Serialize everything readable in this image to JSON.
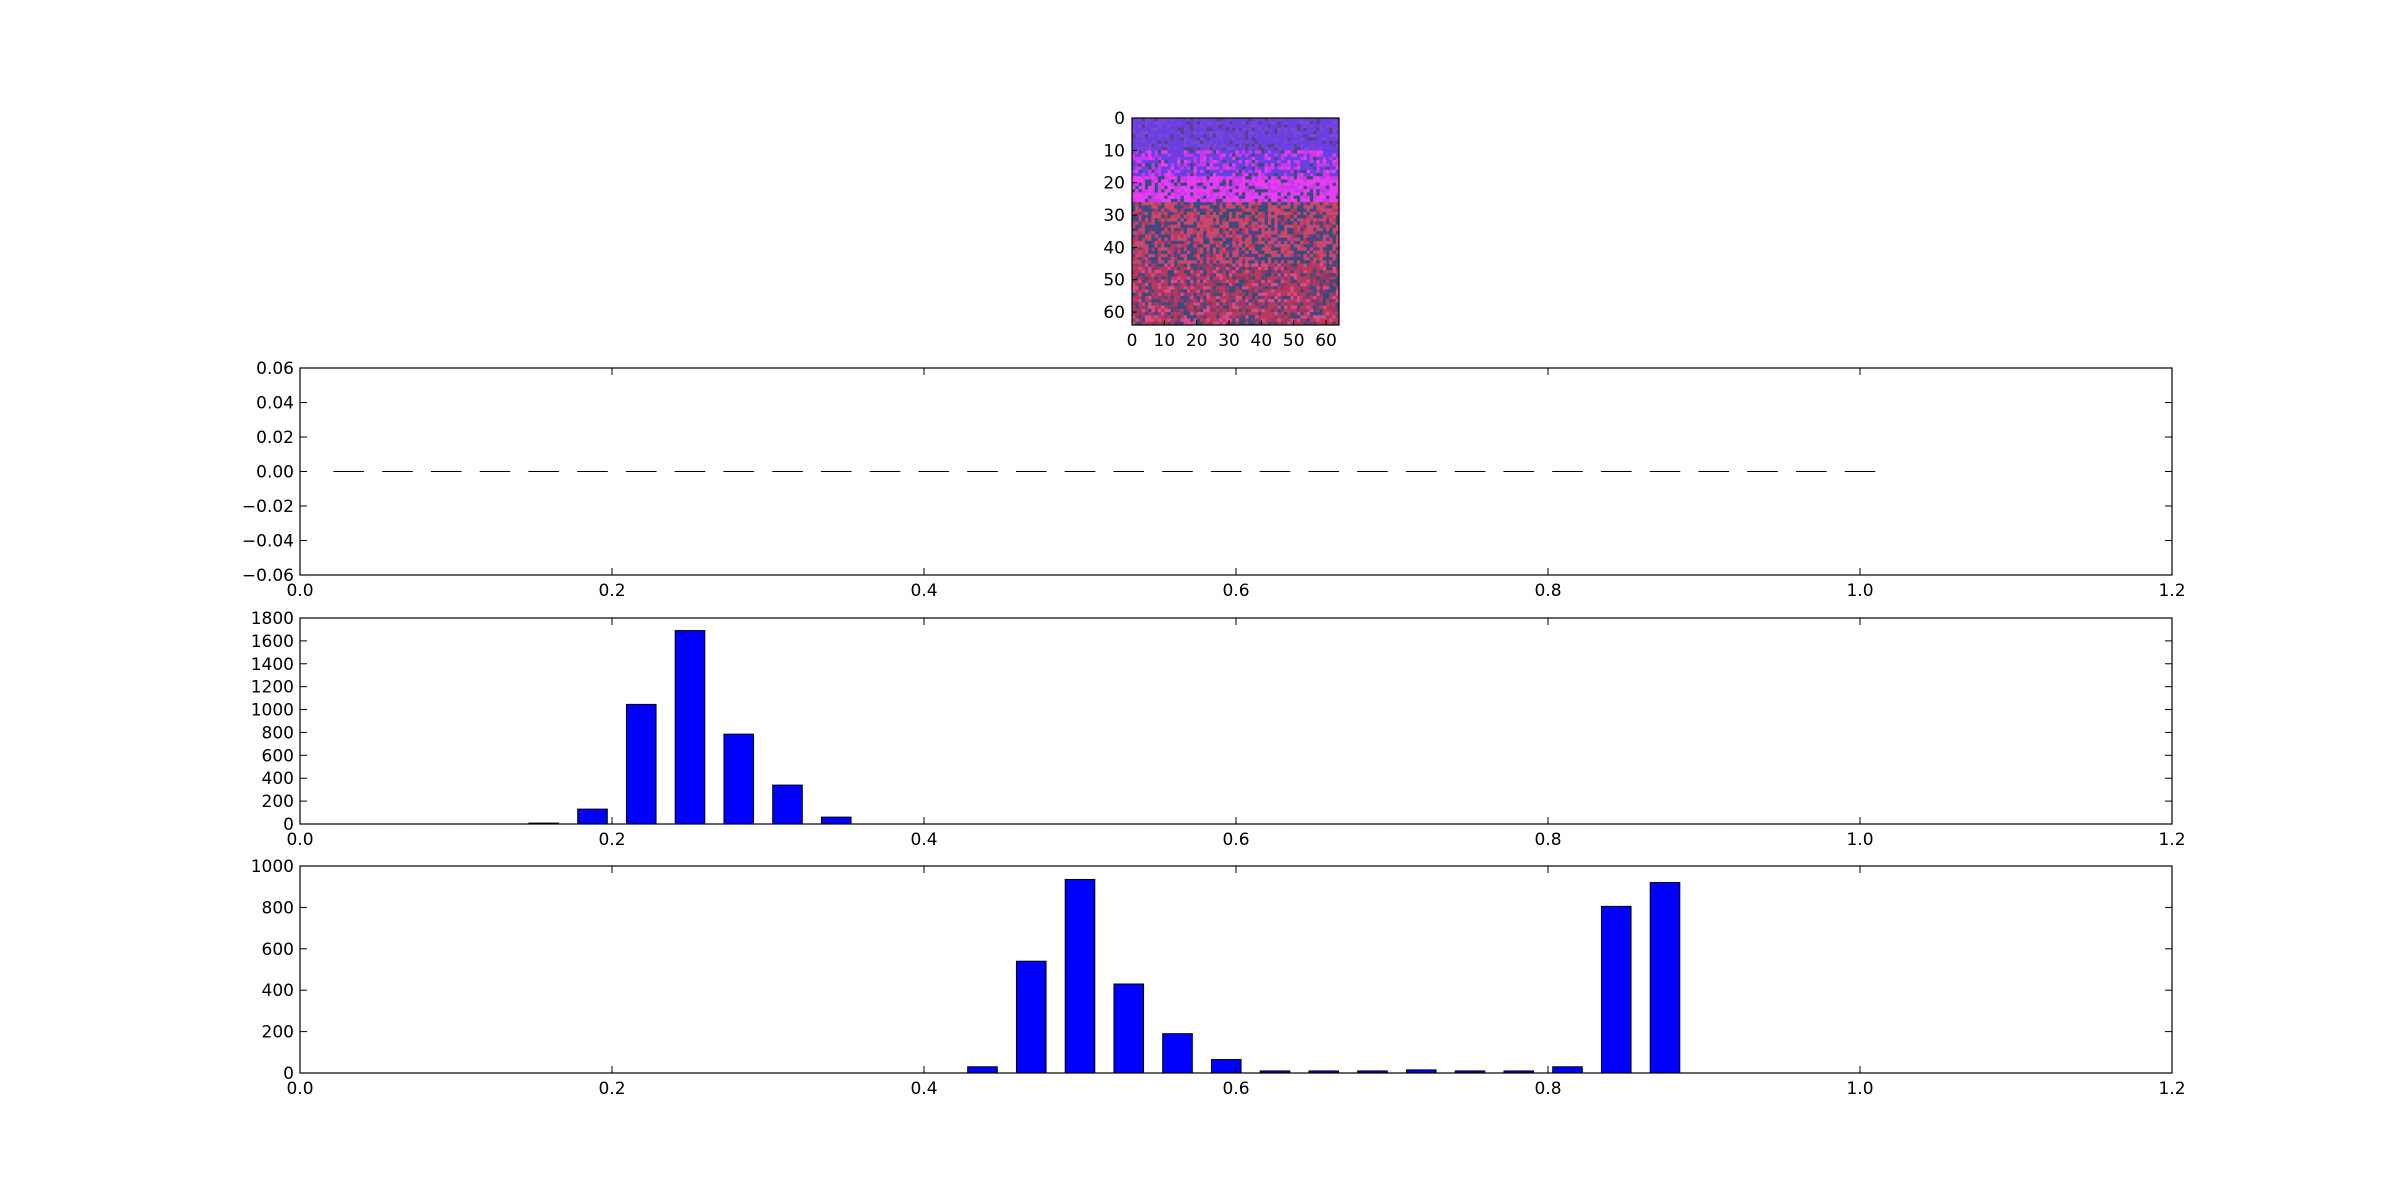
{
  "figure": {
    "background": "#ffffff",
    "bar_color": "#0000ff",
    "image_palette": [
      "#6a3fe0",
      "#7b45d8",
      "#e83cf0",
      "#c838e8",
      "#3a4a7a",
      "#c8486c",
      "#b8385c",
      "#8a3a6a",
      "#5a3e8e",
      "#d84a88"
    ]
  },
  "chart_data": [
    {
      "type": "heatmap",
      "xlabel": "",
      "ylabel": "",
      "xlim": [
        0,
        64
      ],
      "ylim": [
        64,
        0
      ],
      "x_ticks": [
        0,
        10,
        20,
        30,
        40,
        50,
        60
      ],
      "y_ticks": [
        0,
        10,
        20,
        30,
        40,
        50,
        60
      ],
      "x_tick_labels": [
        "0",
        "10",
        "20",
        "30",
        "40",
        "50",
        "60"
      ],
      "y_tick_labels": [
        "0",
        "10",
        "20",
        "30",
        "40",
        "50",
        "60"
      ],
      "grid": false
    },
    {
      "type": "bar",
      "x": [
        0.03125,
        0.0625,
        0.09375,
        0.125,
        0.15625,
        0.1875,
        0.21875,
        0.25,
        0.28125,
        0.3125,
        0.34375,
        0.375,
        0.40625,
        0.4375,
        0.46875,
        0.5,
        0.53125,
        0.5625,
        0.59375,
        0.625,
        0.65625,
        0.6875,
        0.71875,
        0.75,
        0.78125,
        0.8125,
        0.84375,
        0.875,
        0.90625,
        0.9375,
        0.96875,
        1.0
      ],
      "values": [
        0,
        0,
        0,
        0,
        0,
        0,
        0,
        0,
        0,
        0,
        0,
        0,
        0,
        0,
        0,
        0,
        0,
        0,
        0,
        0,
        0,
        0,
        0,
        0,
        0,
        0,
        0,
        0,
        0,
        0,
        0,
        0
      ],
      "xlim": [
        0.0,
        1.2
      ],
      "ylim": [
        -0.06,
        0.06
      ],
      "x_ticks": [
        0.0,
        0.2,
        0.4,
        0.6,
        0.8,
        1.0,
        1.2
      ],
      "y_ticks": [
        -0.06,
        -0.04,
        -0.02,
        0.0,
        0.02,
        0.04,
        0.06
      ],
      "x_tick_labels": [
        "0.0",
        "0.2",
        "0.4",
        "0.6",
        "0.8",
        "1.0",
        "1.2"
      ],
      "y_tick_labels": [
        "−0.06",
        "−0.04",
        "−0.02",
        "0.00",
        "0.02",
        "0.04",
        "0.06"
      ],
      "bar_width": 0.01,
      "xlabel": "",
      "ylabel": "",
      "grid": false
    },
    {
      "type": "bar",
      "x": [
        0.03125,
        0.0625,
        0.09375,
        0.125,
        0.15625,
        0.1875,
        0.21875,
        0.25,
        0.28125,
        0.3125,
        0.34375,
        0.375,
        0.40625,
        0.4375,
        0.46875,
        0.5,
        0.53125,
        0.5625,
        0.59375,
        0.625,
        0.65625,
        0.6875,
        0.71875,
        0.75,
        0.78125,
        0.8125,
        0.84375,
        0.875,
        0.90625,
        0.9375,
        0.96875,
        1.0
      ],
      "values": [
        0,
        0,
        0,
        0,
        8,
        130,
        1045,
        1690,
        785,
        340,
        60,
        0,
        0,
        0,
        0,
        0,
        0,
        0,
        0,
        0,
        0,
        0,
        0,
        0,
        0,
        0,
        0,
        0,
        0,
        0,
        0,
        0
      ],
      "xlim": [
        0.0,
        1.2
      ],
      "ylim": [
        0,
        1800
      ],
      "x_ticks": [
        0.0,
        0.2,
        0.4,
        0.6,
        0.8,
        1.0,
        1.2
      ],
      "y_ticks": [
        0,
        200,
        400,
        600,
        800,
        1000,
        1200,
        1400,
        1600,
        1800
      ],
      "x_tick_labels": [
        "0.0",
        "0.2",
        "0.4",
        "0.6",
        "0.8",
        "1.0",
        "1.2"
      ],
      "y_tick_labels": [
        "0",
        "200",
        "400",
        "600",
        "800",
        "1000",
        "1200",
        "1400",
        "1600",
        "1800"
      ],
      "bar_width": 0.01,
      "xlabel": "",
      "ylabel": "",
      "grid": false
    },
    {
      "type": "bar",
      "x": [
        0.03125,
        0.0625,
        0.09375,
        0.125,
        0.15625,
        0.1875,
        0.21875,
        0.25,
        0.28125,
        0.3125,
        0.34375,
        0.375,
        0.40625,
        0.4375,
        0.46875,
        0.5,
        0.53125,
        0.5625,
        0.59375,
        0.625,
        0.65625,
        0.6875,
        0.71875,
        0.75,
        0.78125,
        0.8125,
        0.84375,
        0.875,
        0.90625,
        0.9375,
        0.96875,
        1.0
      ],
      "values": [
        0,
        0,
        0,
        0,
        0,
        0,
        0,
        0,
        0,
        0,
        0,
        0,
        0,
        30,
        540,
        935,
        430,
        190,
        65,
        10,
        10,
        10,
        15,
        10,
        10,
        30,
        805,
        920,
        0,
        0,
        0,
        0
      ],
      "xlim": [
        0.0,
        1.2
      ],
      "ylim": [
        0,
        1000
      ],
      "x_ticks": [
        0.0,
        0.2,
        0.4,
        0.6,
        0.8,
        1.0,
        1.2
      ],
      "y_ticks": [
        0,
        200,
        400,
        600,
        800,
        1000
      ],
      "x_tick_labels": [
        "0.0",
        "0.2",
        "0.4",
        "0.6",
        "0.8",
        "1.0",
        "1.2"
      ],
      "y_tick_labels": [
        "0",
        "200",
        "400",
        "600",
        "800",
        "1000"
      ],
      "bar_width": 0.01,
      "xlabel": "",
      "ylabel": "",
      "grid": false
    }
  ]
}
